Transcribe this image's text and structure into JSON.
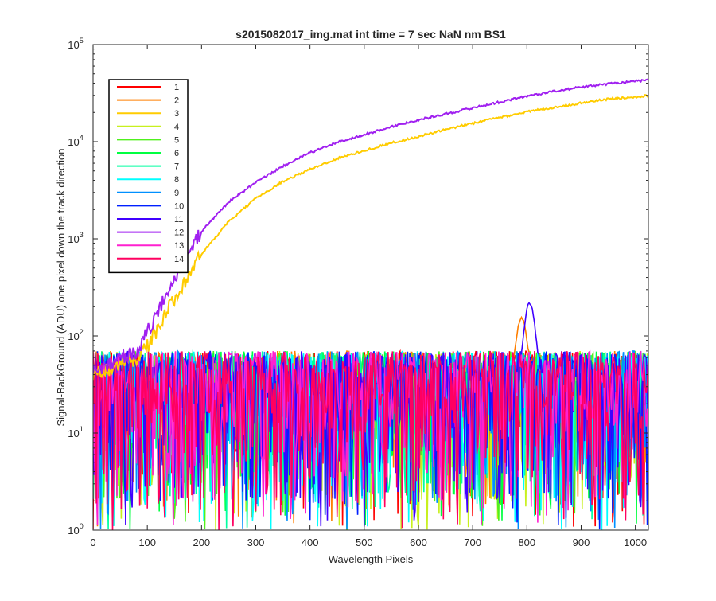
{
  "chart_data": {
    "type": "line",
    "title": "s2015082017_img.mat int time = 7 sec  NaN nm BS1",
    "xlabel": "Wavelength Pixels",
    "ylabel": "Signal-BackGround (ADU) one pixel down the track direction",
    "xlim": [
      0,
      1024
    ],
    "ylim": [
      1,
      100000
    ],
    "yscale": "log",
    "x_ticks": [
      "0",
      "100",
      "200",
      "300",
      "400",
      "500",
      "600",
      "700",
      "800",
      "900",
      "1000"
    ],
    "y_tick_exponents": [
      "0",
      "1",
      "2",
      "3",
      "4",
      "5"
    ],
    "y_tick_base": "10",
    "legend_location": "top-left",
    "grid": false,
    "series": [
      {
        "name": "1",
        "color": "#ff0000",
        "profile": "noise"
      },
      {
        "name": "2",
        "color": "#ff7f00",
        "profile": "noise_bump",
        "bump": {
          "center": 790,
          "peak": 160
        }
      },
      {
        "name": "3",
        "color": "#ffcc00",
        "profile": "rising",
        "points": [
          [
            0,
            40
          ],
          [
            80,
            60
          ],
          [
            100,
            80
          ],
          [
            120,
            120
          ],
          [
            150,
            250
          ],
          [
            200,
            700
          ],
          [
            250,
            1500
          ],
          [
            300,
            2600
          ],
          [
            350,
            3900
          ],
          [
            400,
            5200
          ],
          [
            450,
            6700
          ],
          [
            500,
            8100
          ],
          [
            550,
            9700
          ],
          [
            600,
            11300
          ],
          [
            650,
            13300
          ],
          [
            700,
            15500
          ],
          [
            750,
            17800
          ],
          [
            800,
            20300
          ],
          [
            850,
            22600
          ],
          [
            900,
            25000
          ],
          [
            950,
            27500
          ],
          [
            1000,
            29000
          ],
          [
            1024,
            30000
          ]
        ]
      },
      {
        "name": "4",
        "color": "#c8f01e",
        "profile": "noise"
      },
      {
        "name": "5",
        "color": "#50f01e",
        "profile": "noise"
      },
      {
        "name": "6",
        "color": "#00ff40",
        "profile": "noise"
      },
      {
        "name": "7",
        "color": "#00ffa0",
        "profile": "noise"
      },
      {
        "name": "8",
        "color": "#00ffff",
        "profile": "noise"
      },
      {
        "name": "9",
        "color": "#0090ff",
        "profile": "noise"
      },
      {
        "name": "10",
        "color": "#0020ff",
        "profile": "noise"
      },
      {
        "name": "11",
        "color": "#4000ff",
        "profile": "noise_bump",
        "bump": {
          "center": 805,
          "peak": 230
        }
      },
      {
        "name": "12",
        "color": "#a020f0",
        "profile": "rising",
        "points": [
          [
            0,
            45
          ],
          [
            80,
            70
          ],
          [
            100,
            110
          ],
          [
            120,
            180
          ],
          [
            150,
            400
          ],
          [
            200,
            1200
          ],
          [
            250,
            2400
          ],
          [
            300,
            3800
          ],
          [
            350,
            5600
          ],
          [
            400,
            7700
          ],
          [
            450,
            9800
          ],
          [
            500,
            11800
          ],
          [
            550,
            14300
          ],
          [
            600,
            16800
          ],
          [
            650,
            19300
          ],
          [
            700,
            22300
          ],
          [
            750,
            25600
          ],
          [
            800,
            29500
          ],
          [
            850,
            33000
          ],
          [
            900,
            36500
          ],
          [
            950,
            39500
          ],
          [
            1000,
            42000
          ],
          [
            1024,
            43000
          ]
        ]
      },
      {
        "name": "13",
        "color": "#ff20d0",
        "profile": "noise"
      },
      {
        "name": "14",
        "color": "#ff0060",
        "profile": "noise"
      }
    ]
  }
}
